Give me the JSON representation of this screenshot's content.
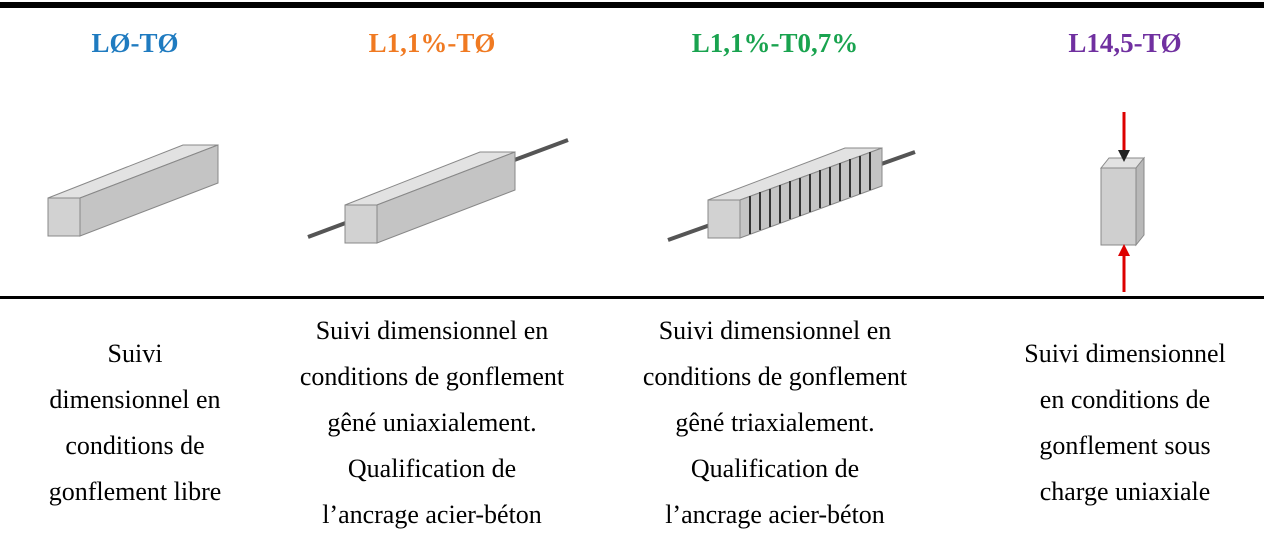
{
  "columns": [
    {
      "label": "LØ-TØ",
      "description": [
        "Suivi",
        "dimensionnel en",
        "conditions de",
        "gonflement libre"
      ]
    },
    {
      "label": "L1,1%-TØ",
      "description": [
        "Suivi dimensionnel en",
        "conditions de gonflement",
        "gêné uniaxialement.",
        "Qualification de",
        "l’ancrage acier-béton"
      ]
    },
    {
      "label": "L1,1%-T0,7%",
      "description": [
        "Suivi dimensionnel en",
        "conditions de gonflement",
        "gêné triaxialement.",
        "Qualification de",
        "l’ancrage acier-béton"
      ]
    },
    {
      "label": "L14,5-TØ",
      "description": [
        "Suivi dimensionnel",
        "en conditions de",
        "gonflement sous",
        "charge uniaxiale"
      ]
    }
  ]
}
